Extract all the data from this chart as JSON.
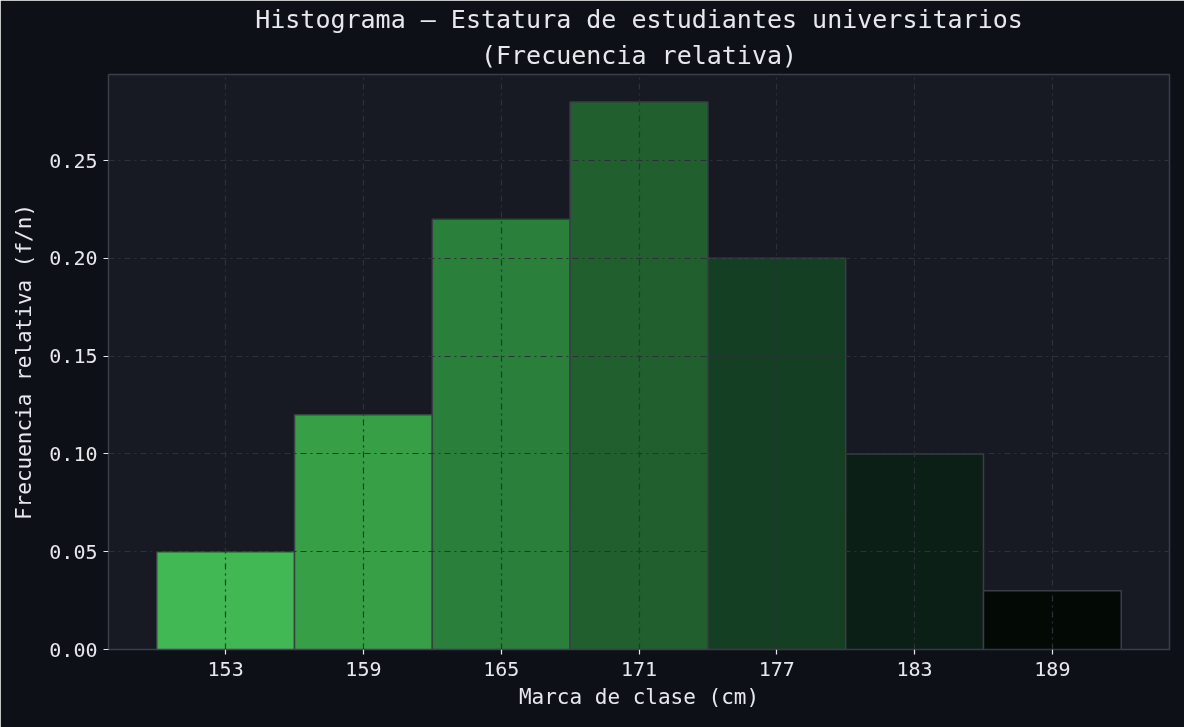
{
  "chart_data": {
    "type": "histogram",
    "title": "Histograma — Estatura de estudiantes universitarios",
    "subtitle": "(Frecuencia relativa)",
    "xlabel": "Marca de clase (cm)",
    "ylabel": "Frecuencia relativa (f/n)",
    "bins": [
      150,
      156,
      162,
      168,
      174,
      180,
      186,
      192
    ],
    "values": [
      0.05,
      0.12,
      0.22,
      0.28,
      0.2,
      0.1,
      0.03
    ],
    "colors": [
      "#41b853",
      "#37a046",
      "#2a7f3b",
      "#21602e",
      "#143f22",
      "#0b1f16",
      "#030a06"
    ],
    "xlim": [
      147.9,
      194.1
    ],
    "xticks": [
      153,
      159,
      165,
      171,
      177,
      183,
      189
    ],
    "ylim": [
      0,
      0.294
    ],
    "yticks": [
      {
        "value": 0,
        "label": "0.00"
      },
      {
        "value": 0.05,
        "label": "0.05"
      },
      {
        "value": 0.1,
        "label": "0.10"
      },
      {
        "value": 0.15,
        "label": "0.15"
      },
      {
        "value": 0.2,
        "label": "0.20"
      },
      {
        "value": 0.25,
        "label": "0.25"
      }
    ],
    "grid": true,
    "line_style": "dashdot"
  }
}
